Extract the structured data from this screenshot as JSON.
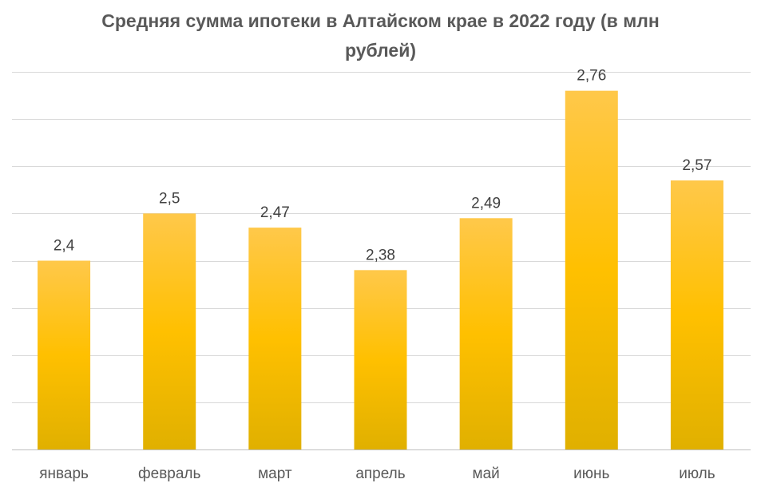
{
  "chart_data": {
    "type": "bar",
    "title": "Средняя сумма ипотеки в Алтайском крае в 2022 году (в млн рублей)",
    "categories": [
      "январь",
      "февраль",
      "март",
      "апрель",
      "май",
      "июнь",
      "июль"
    ],
    "values": [
      2.4,
      2.5,
      2.47,
      2.38,
      2.49,
      2.76,
      2.57
    ],
    "value_labels": [
      "2,4",
      "2,5",
      "2,47",
      "2,38",
      "2,49",
      "2,76",
      "2,57"
    ],
    "xlabel": "",
    "ylabel": "",
    "ylim": [
      2.0,
      2.8
    ],
    "grid": true,
    "legend": "none",
    "colors": {
      "bar_top": "#ffc84a",
      "bar_mid": "#ffc000",
      "bar_bottom": "#e0b000",
      "grid": "#d9d9d9",
      "axis": "#bfbfbf"
    }
  }
}
